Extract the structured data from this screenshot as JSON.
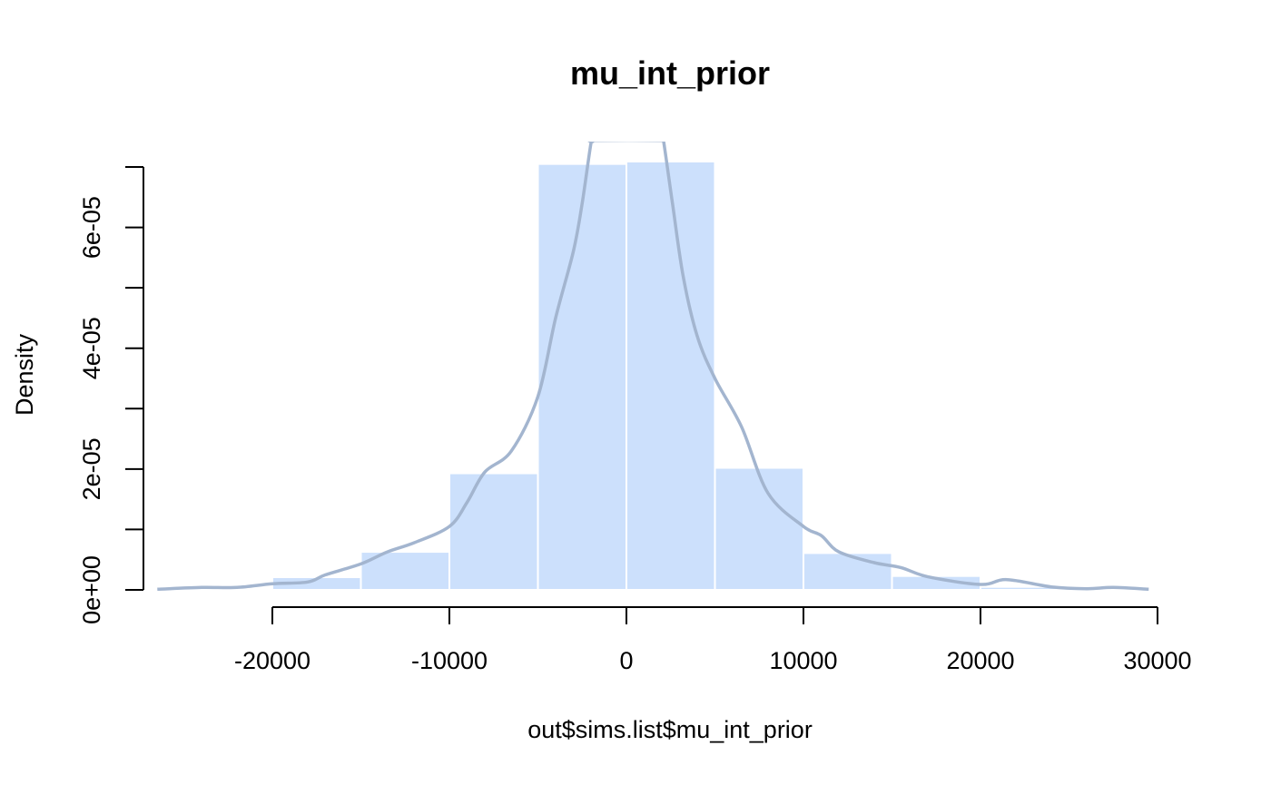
{
  "chart_data": {
    "type": "bar",
    "title": "mu_int_prior",
    "xlabel": "out$sims.list$mu_int_prior",
    "ylabel": "Density",
    "xlim": [
      -27000,
      29500
    ],
    "ylim": [
      0,
      7e-05
    ],
    "bins": [
      {
        "x0": -20000,
        "x1": -15000,
        "density": 2.1e-06
      },
      {
        "x0": -15000,
        "x1": -10000,
        "density": 6.3e-06
      },
      {
        "x0": -10000,
        "x1": -5000,
        "density": 1.93e-05
      },
      {
        "x0": -5000,
        "x1": 0,
        "density": 7.05e-05
      },
      {
        "x0": 0,
        "x1": 5000,
        "density": 7.09e-05
      },
      {
        "x0": 5000,
        "x1": 10000,
        "density": 2.02e-05
      },
      {
        "x0": 10000,
        "x1": 15000,
        "density": 6.1e-06
      },
      {
        "x0": 15000,
        "x1": 20000,
        "density": 2.3e-06
      },
      {
        "x0": 20000,
        "x1": 25000,
        "density": 5e-07
      }
    ],
    "density_curve": [
      [
        -26500,
        1e-07
      ],
      [
        -24000,
        4e-07
      ],
      [
        -22000,
        4e-07
      ],
      [
        -20000,
        1e-06
      ],
      [
        -18000,
        1.3e-06
      ],
      [
        -17000,
        2.5e-06
      ],
      [
        -15000,
        4.3e-06
      ],
      [
        -13500,
        6.3e-06
      ],
      [
        -12000,
        7.8e-06
      ],
      [
        -10000,
        1.05e-05
      ],
      [
        -9000,
        1.45e-05
      ],
      [
        -8000,
        1.95e-05
      ],
      [
        -6500,
        2.3e-05
      ],
      [
        -5000,
        3.2e-05
      ],
      [
        -4000,
        4.5e-05
      ],
      [
        -3000,
        5.6e-05
      ],
      [
        -2500,
        6.4e-05
      ],
      [
        -2000,
        7.4e-05
      ],
      [
        -1900,
        7.42e-05
      ],
      [
        -1800,
        7.44e-05
      ],
      [
        2000,
        7.44e-05
      ],
      [
        2100,
        7.42e-05
      ],
      [
        2600,
        6.4e-05
      ],
      [
        3200,
        5.2e-05
      ],
      [
        4000,
        4.2e-05
      ],
      [
        5000,
        3.5e-05
      ],
      [
        6500,
        2.7e-05
      ],
      [
        8000,
        1.6e-05
      ],
      [
        10000,
        1.05e-05
      ],
      [
        11000,
        9e-06
      ],
      [
        12000,
        6.3e-06
      ],
      [
        14000,
        4.5e-06
      ],
      [
        15500,
        3.7e-06
      ],
      [
        17000,
        2.2e-06
      ],
      [
        20000,
        9e-07
      ],
      [
        21500,
        1.7e-06
      ],
      [
        24000,
        5e-07
      ],
      [
        26000,
        2e-07
      ],
      [
        27500,
        4e-07
      ],
      [
        29500,
        1e-07
      ]
    ],
    "x_ticks": [
      -20000,
      -10000,
      0,
      10000,
      20000,
      30000
    ],
    "x_tick_labels": [
      "-20000",
      "-10000",
      "0",
      "10000",
      "20000",
      "30000"
    ],
    "y_ticks": [
      0,
      1e-05,
      2e-05,
      3e-05,
      4e-05,
      5e-05,
      6e-05,
      7e-05
    ],
    "y_tick_labels": [
      "0e+00",
      "2e-05",
      "4e-05",
      "6e-05"
    ],
    "y_labeled_ticks": [
      0,
      2e-05,
      4e-05,
      6e-05
    ],
    "bar_color": "#cce0fc",
    "bar_edge_color": "#ffffff",
    "curve_color": "#a3b5cf",
    "grid": false,
    "legend": "none"
  }
}
